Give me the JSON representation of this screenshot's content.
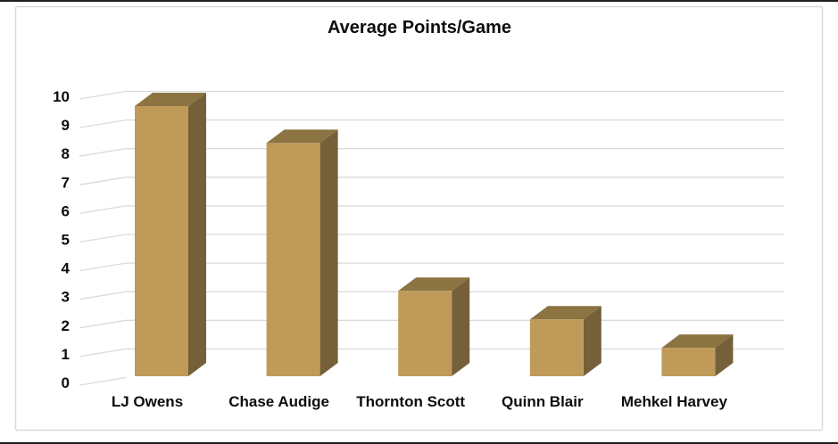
{
  "chart_data": {
    "type": "bar",
    "variant": "3d-column",
    "title": "Average Points/Game",
    "categories": [
      "LJ Owens",
      "Chase Audige",
      "Thornton Scott",
      "Quinn Blair",
      "Mehkel Harvey"
    ],
    "values": [
      9.5,
      8.2,
      3,
      2,
      1
    ],
    "series": [
      {
        "name": "Average Points/Game",
        "values": [
          9.5,
          8.2,
          3,
          2,
          1
        ]
      }
    ],
    "xlabel": "",
    "ylabel": "",
    "ylim": [
      0,
      10
    ],
    "yticks": [
      0,
      1,
      2,
      3,
      4,
      5,
      6,
      7,
      8,
      9,
      10
    ],
    "grid": true,
    "legend": false,
    "colors": {
      "bar_front": "#BF9A59",
      "bar_top": "#8C7342",
      "bar_side": "#75603A",
      "gridline": "#DADADA",
      "frame_border": "#D9D9D9",
      "text": "#0D0D0D",
      "background": "#FFFFFF"
    }
  }
}
